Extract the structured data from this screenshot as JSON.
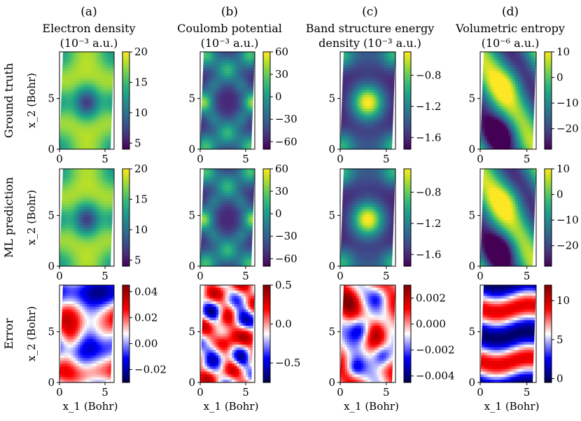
{
  "chart_data": {
    "type": "heatmap",
    "title": "",
    "xlabel": "x_1 (Bohr)",
    "ylabel": "x_2 (Bohr)",
    "xlim": [
      0,
      6
    ],
    "ylim": [
      0,
      9.6
    ],
    "x_ticks": [
      "0",
      "5"
    ],
    "y_ticks": [
      "0",
      "5"
    ],
    "row_labels": [
      "Ground truth",
      "ML prediction",
      "Error"
    ],
    "columns": [
      {
        "letter": "(a)",
        "title_lines": [
          "Electron density",
          "(10⁻³ a.u.)"
        ]
      },
      {
        "letter": "(b)",
        "title_lines": [
          "Coulomb potential",
          "(10⁻³ a.u.)"
        ]
      },
      {
        "letter": "(c)",
        "title_lines": [
          "Band structure energy",
          "density (10⁻³ a.u.)"
        ]
      },
      {
        "letter": "(d)",
        "title_lines": [
          "Volumetric entropy",
          "(10⁻⁶ a.u.)"
        ]
      }
    ],
    "panels": [
      {
        "id": "gt-a",
        "row": 0,
        "col": 0,
        "cmap": "viridis",
        "pattern": "density",
        "vmin": 4,
        "vmax": 20,
        "cbar_ticks": [
          "20",
          "15",
          "10",
          "5"
        ],
        "cbar_tick_values": [
          20,
          15,
          10,
          5
        ]
      },
      {
        "id": "gt-b",
        "row": 0,
        "col": 1,
        "cmap": "viridis",
        "pattern": "coulomb",
        "vmin": -70,
        "vmax": 60,
        "cbar_ticks": [
          "60",
          "30",
          "0",
          "−30",
          "−60"
        ],
        "cbar_tick_values": [
          60,
          30,
          0,
          -30,
          -60
        ]
      },
      {
        "id": "gt-c",
        "row": 0,
        "col": 2,
        "cmap": "viridis",
        "pattern": "band",
        "vmin": -1.75,
        "vmax": -0.5,
        "cbar_ticks": [
          "−0.8",
          "−1.2",
          "−1.6"
        ],
        "cbar_tick_values": [
          -0.8,
          -1.2,
          -1.6
        ]
      },
      {
        "id": "gt-d",
        "row": 0,
        "col": 3,
        "cmap": "viridis",
        "pattern": "entropy",
        "vmin": -28,
        "vmax": 10,
        "cbar_ticks": [
          "10",
          "0",
          "−10",
          "−20"
        ],
        "cbar_tick_values": [
          10,
          0,
          -10,
          -20
        ]
      },
      {
        "id": "ml-a",
        "row": 1,
        "col": 0,
        "cmap": "viridis",
        "pattern": "density",
        "vmin": 4,
        "vmax": 20,
        "cbar_ticks": [
          "20",
          "15",
          "10",
          "5"
        ],
        "cbar_tick_values": [
          20,
          15,
          10,
          5
        ]
      },
      {
        "id": "ml-b",
        "row": 1,
        "col": 1,
        "cmap": "viridis",
        "pattern": "coulomb",
        "vmin": -70,
        "vmax": 60,
        "cbar_ticks": [
          "60",
          "30",
          "0",
          "−30",
          "−60"
        ],
        "cbar_tick_values": [
          60,
          30,
          0,
          -30,
          -60
        ]
      },
      {
        "id": "ml-c",
        "row": 1,
        "col": 2,
        "cmap": "viridis",
        "pattern": "band",
        "vmin": -1.75,
        "vmax": -0.5,
        "cbar_ticks": [
          "−0.8",
          "−1.2",
          "−1.6"
        ],
        "cbar_tick_values": [
          -0.8,
          -1.2,
          -1.6
        ]
      },
      {
        "id": "ml-d",
        "row": 1,
        "col": 3,
        "cmap": "viridis",
        "pattern": "entropy",
        "vmin": -28,
        "vmax": 10,
        "cbar_ticks": [
          "10",
          "0",
          "−10",
          "−20"
        ],
        "cbar_tick_values": [
          10,
          0,
          -10,
          -20
        ]
      },
      {
        "id": "err-a",
        "row": 2,
        "col": 0,
        "cmap": "seismic",
        "pattern": "err_a",
        "vmin": -0.03,
        "vmax": 0.045,
        "cbar_ticks": [
          "0.04",
          "0.02",
          "0.00",
          "−0.02"
        ],
        "cbar_tick_values": [
          0.04,
          0.02,
          0.0,
          -0.02
        ]
      },
      {
        "id": "err-b",
        "row": 2,
        "col": 1,
        "cmap": "seismic",
        "pattern": "err_b",
        "vmin": -0.75,
        "vmax": 0.5,
        "cbar_ticks": [
          "0.5",
          "0.0",
          "−0.5"
        ],
        "cbar_tick_values": [
          0.5,
          0.0,
          -0.5
        ]
      },
      {
        "id": "err-c",
        "row": 2,
        "col": 2,
        "cmap": "seismic",
        "pattern": "err_c",
        "vmin": -0.0045,
        "vmax": 0.003,
        "cbar_ticks": [
          "0.002",
          "0.000",
          "−0.002",
          "−0.004"
        ],
        "cbar_tick_values": [
          0.002,
          0.0,
          -0.002,
          -0.004
        ]
      },
      {
        "id": "err-d",
        "row": 2,
        "col": 3,
        "cmap": "seismic",
        "pattern": "err_d",
        "vmin": -0.5,
        "vmax": 12,
        "cbar_ticks": [
          "10",
          "5",
          "0"
        ],
        "cbar_tick_values": [
          10,
          5,
          0
        ]
      }
    ]
  }
}
